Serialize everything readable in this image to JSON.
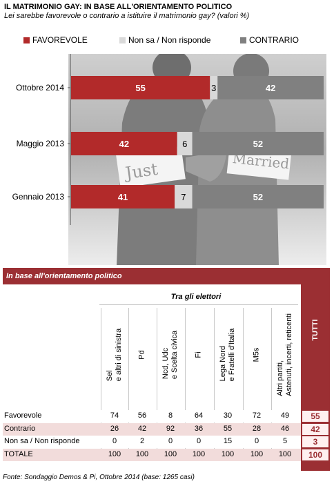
{
  "header": {
    "title": "IL MATRIMONIO GAY: IN BASE ALL'ORIENTAMENTO  POLITICO",
    "subtitle": "Lei sarebbe favorevole o contrario a istituire il matrimonio gay? (valori %)"
  },
  "legend": [
    {
      "label": "FAVOREVOLE",
      "color": "#b22a2a"
    },
    {
      "label": "Non sa / Non risponde",
      "color": "#d9d9d9"
    },
    {
      "label": "CONTRARIO",
      "color": "#808080"
    }
  ],
  "photo_signs": {
    "left": "Just",
    "right": "Married"
  },
  "chart_data": {
    "type": "bar",
    "orientation": "horizontal",
    "stacked": true,
    "categories": [
      "Ottobre 2014",
      "Maggio 2013",
      "Gennaio 2013"
    ],
    "series": [
      {
        "name": "FAVOREVOLE",
        "values": [
          55,
          42,
          41
        ],
        "color": "#b22a2a"
      },
      {
        "name": "Non sa / Non risponde",
        "values": [
          3,
          6,
          7
        ],
        "color": "#d9d9d9"
      },
      {
        "name": "CONTRARIO",
        "values": [
          42,
          52,
          52
        ],
        "color": "#808080"
      }
    ],
    "xlim": [
      0,
      100
    ],
    "grid": false,
    "legend_position": "top"
  },
  "table": {
    "heading": "In base all'orientamento politico",
    "group_label": "Tra gli elettori",
    "tutti_label": "TUTTI",
    "columns": [
      "Sel\ne altri di sinistra",
      "Pd",
      "Ncd, Udc\ne Scelta civica",
      "Fi",
      "Lega Nord\ne Fratelli d'Italia",
      "M5s",
      "Altri partiti,\nAstenuti, incerti, reticenti"
    ],
    "rows": [
      {
        "label": "Favorevole",
        "values": [
          "74",
          "56",
          "8",
          "64",
          "30",
          "72",
          "49"
        ],
        "tutti": "55"
      },
      {
        "label": "Contrario",
        "values": [
          "26",
          "42",
          "92",
          "36",
          "55",
          "28",
          "46"
        ],
        "tutti": "42"
      },
      {
        "label": "Non sa / Non risponde",
        "values": [
          "0",
          "2",
          "0",
          "0",
          "15",
          "0",
          "5"
        ],
        "tutti": "3"
      },
      {
        "label": "TOTALE",
        "values": [
          "100",
          "100",
          "100",
          "100",
          "100",
          "100",
          "100"
        ],
        "tutti": "100"
      }
    ]
  },
  "source": "Fonte: Sondaggio Demos & Pi, Ottobre 2014 (base: 1265 casi)"
}
